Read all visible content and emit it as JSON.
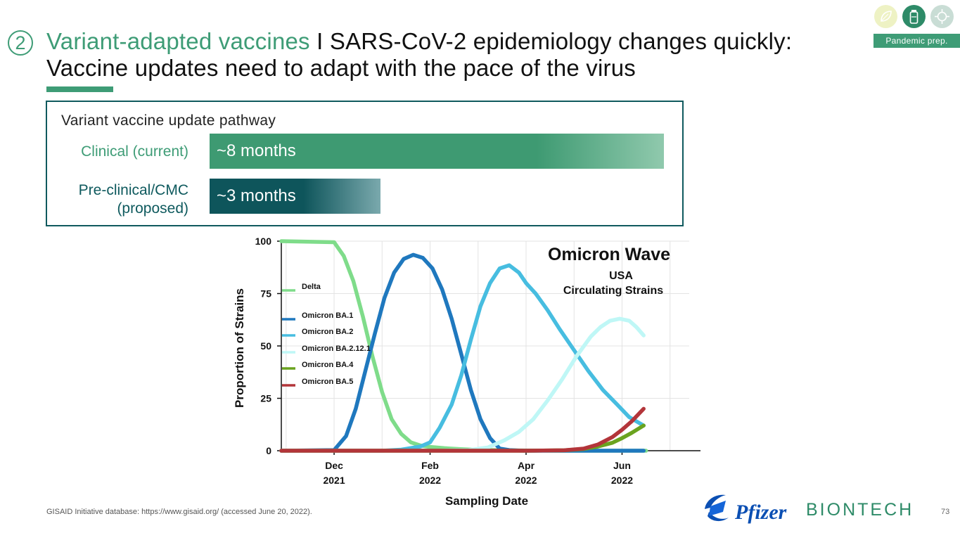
{
  "header": {
    "step_number": "2",
    "title_accent": "Variant-adapted vaccines",
    "title_rest": " I SARS-CoV-2 epidemiology changes quickly:",
    "title_line2": "Vaccine updates need to adapt with the pace of the virus",
    "badge": "Pandemic prep."
  },
  "icons": [
    "leaf-icon",
    "vial-icon",
    "virus-icon"
  ],
  "colors": {
    "accent": "#3e9c76",
    "dark_teal": "#0f5a5e"
  },
  "pathway": {
    "heading": "Variant vaccine update pathway",
    "rows": [
      {
        "label": "Clinical (current)",
        "duration": "~8 months",
        "months": 8
      },
      {
        "label_line1": "Pre-clinical/CMC",
        "label_line2": "(proposed)",
        "duration": "~3 months",
        "months": 3
      }
    ]
  },
  "chart_data": {
    "type": "line",
    "title": "Omicron Wave",
    "subtitle_line1": "USA",
    "subtitle_line2": "Circulating Strains",
    "xlabel": "Sampling Date",
    "ylabel": "Proportion of Strains",
    "ylim": [
      0,
      100
    ],
    "yticks": [
      0,
      25,
      50,
      75,
      100
    ],
    "xlim": [
      -1.1,
      7.4
    ],
    "xticks": [
      {
        "x": 0,
        "line1": "Dec",
        "line2": "2021"
      },
      {
        "x": 2,
        "line1": "Feb",
        "line2": "2022"
      },
      {
        "x": 4,
        "line1": "Apr",
        "line2": "2022"
      },
      {
        "x": 6,
        "line1": "Jun",
        "line2": "2022"
      }
    ],
    "grid": true,
    "legend_position": "left",
    "series": [
      {
        "name": "Delta",
        "color": "#7fdc8a",
        "x": [
          -1.1,
          0,
          0.2,
          0.4,
          0.6,
          0.8,
          1.0,
          1.2,
          1.4,
          1.6,
          1.8,
          2.0,
          2.3,
          2.6,
          3.0,
          3.5,
          4.0,
          5.0,
          6.0,
          6.5
        ],
        "y": [
          100,
          99.5,
          93,
          81,
          64,
          45,
          28,
          15,
          8,
          4,
          2.5,
          1.8,
          1.2,
          0.8,
          0.4,
          0.2,
          0.1,
          0,
          0,
          0
        ]
      },
      {
        "name": "Omicron BA.1",
        "color": "#1f78be",
        "x": [
          -1.1,
          0,
          0.25,
          0.45,
          0.65,
          0.85,
          1.05,
          1.25,
          1.45,
          1.65,
          1.85,
          2.05,
          2.25,
          2.45,
          2.65,
          2.85,
          3.05,
          3.25,
          3.45,
          3.65,
          3.85,
          4.0,
          4.3,
          5.0,
          6.0,
          6.45
        ],
        "y": [
          0,
          0.3,
          7,
          20,
          38,
          56,
          73,
          85,
          91.5,
          93.5,
          92,
          87,
          77,
          63,
          46,
          29,
          15,
          6,
          1,
          0.3,
          0.1,
          0,
          0,
          0,
          0,
          0
        ]
      },
      {
        "name": "Omicron BA.2",
        "color": "#47bde0",
        "x": [
          -1.1,
          0,
          1.0,
          1.4,
          1.8,
          2.0,
          2.2,
          2.45,
          2.65,
          2.85,
          3.05,
          3.25,
          3.45,
          3.65,
          3.85,
          4.0,
          4.2,
          4.45,
          4.7,
          5.0,
          5.3,
          5.6,
          5.9,
          6.15,
          6.45
        ],
        "y": [
          0,
          0,
          0,
          0.5,
          2,
          4,
          11,
          22,
          36,
          53,
          69,
          80,
          87,
          88.5,
          85,
          80,
          75,
          67,
          58,
          48,
          38,
          29,
          22,
          16,
          12
        ]
      },
      {
        "name": "Omicron BA.2.12.1",
        "color": "#bff7f6",
        "x": [
          -1.1,
          0,
          2.0,
          2.8,
          3.2,
          3.55,
          3.85,
          4.15,
          4.45,
          4.75,
          5.05,
          5.35,
          5.55,
          5.75,
          5.95,
          6.15,
          6.3,
          6.45
        ],
        "y": [
          0,
          0,
          0,
          0.3,
          1.5,
          5,
          9,
          15,
          24,
          34,
          45,
          54.5,
          59,
          62,
          63,
          62,
          59,
          55
        ]
      },
      {
        "name": "Omicron BA.4",
        "color": "#6aa31f",
        "x": [
          -1.1,
          0,
          4.0,
          4.8,
          5.2,
          5.5,
          5.8,
          6.0,
          6.2,
          6.45
        ],
        "y": [
          0,
          0,
          0,
          0.2,
          0.8,
          2,
          3.8,
          6,
          8.5,
          12
        ]
      },
      {
        "name": "Omicron BA.5",
        "color": "#b3353a",
        "x": [
          -1.1,
          0,
          4.0,
          4.8,
          5.2,
          5.5,
          5.8,
          6.0,
          6.2,
          6.45
        ],
        "y": [
          0,
          0,
          0,
          0.2,
          1,
          3,
          6.5,
          10,
          14,
          20
        ]
      }
    ]
  },
  "footer": {
    "source": "GISAID Initiative database: https://www.gisaid.org/ (accessed June 20, 2022).",
    "page_number": "73",
    "pfizer": "Pfizer",
    "biontech": "BIONTECH"
  }
}
